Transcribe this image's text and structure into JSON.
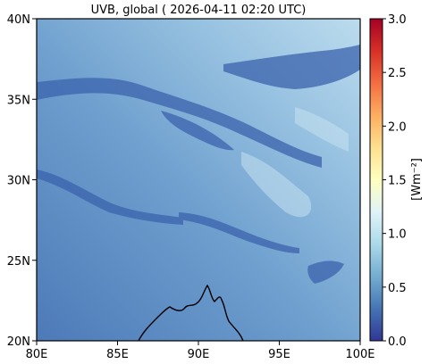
{
  "title": "UVB, global ( 2026-04-11 02:20 UTC)",
  "map": {
    "lon_range": [
      80,
      100
    ],
    "lat_range": [
      20,
      40
    ],
    "lon_ticks": [
      {
        "value": 80,
        "label": "80E"
      },
      {
        "value": 85,
        "label": "85E"
      },
      {
        "value": 90,
        "label": "90E"
      },
      {
        "value": 95,
        "label": "95E"
      },
      {
        "value": 100,
        "label": "100E"
      }
    ],
    "lat_ticks": [
      {
        "value": 20,
        "label": "20N"
      },
      {
        "value": 25,
        "label": "25N"
      },
      {
        "value": 30,
        "label": "30N"
      },
      {
        "value": 35,
        "label": "35N"
      },
      {
        "value": 40,
        "label": "40N"
      }
    ]
  },
  "colorbar": {
    "label": "[Wm⁻²]",
    "range": [
      0.0,
      3.0
    ],
    "ticks": [
      {
        "value": 0.0,
        "label": "0.0"
      },
      {
        "value": 0.5,
        "label": "0.5"
      },
      {
        "value": 1.0,
        "label": "1.0"
      },
      {
        "value": 1.5,
        "label": "1.5"
      },
      {
        "value": 2.0,
        "label": "2.0"
      },
      {
        "value": 2.5,
        "label": "2.5"
      },
      {
        "value": 3.0,
        "label": "3.0"
      }
    ],
    "colormap": [
      "#313695",
      "#4575b4",
      "#74add1",
      "#abd9e9",
      "#e0f3f8",
      "#ffffbf",
      "#fee090",
      "#fdae61",
      "#f46d43",
      "#d73027",
      "#a50026"
    ]
  }
}
